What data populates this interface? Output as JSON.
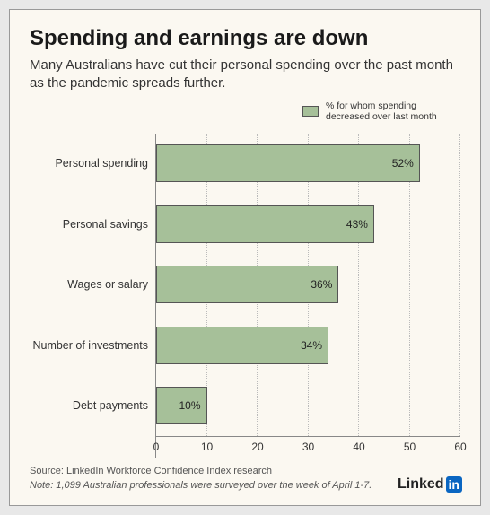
{
  "title": "Spending and earnings are down",
  "subtitle": "Many Australians have cut their personal spending over the past month as the pandemic spreads further.",
  "legend": {
    "text": "% for whom spending decreased over last month",
    "swatch_color": "#a6c099"
  },
  "chart": {
    "type": "bar-horizontal",
    "bar_color": "#a6c099",
    "bar_border": "#555555",
    "background_color": "#fbf8f1",
    "grid_color": "#bbbbbb",
    "axis_color": "#888888",
    "xlim": [
      0,
      60
    ],
    "xtick_step": 10,
    "xticks": [
      0,
      10,
      20,
      30,
      40,
      50,
      60
    ],
    "categories": [
      {
        "label": "Personal spending",
        "value": 52,
        "display": "52%"
      },
      {
        "label": "Personal savings",
        "value": 43,
        "display": "43%"
      },
      {
        "label": "Wages or salary",
        "value": 36,
        "display": "36%"
      },
      {
        "label": "Number of investments",
        "value": 34,
        "display": "34%"
      },
      {
        "label": "Debt payments",
        "value": 10,
        "display": "10%"
      }
    ],
    "label_fontsize": 12.5,
    "tick_fontsize": 12,
    "value_fontsize": 12
  },
  "footer": {
    "source": "Source: LinkedIn Workforce Confidence Index research",
    "note": "Note: 1,099 Australian professionals were surveyed over the week of April 1-7."
  },
  "brand": {
    "name": "Linked",
    "suffix": "in",
    "suffix_bg": "#0a66c2"
  }
}
